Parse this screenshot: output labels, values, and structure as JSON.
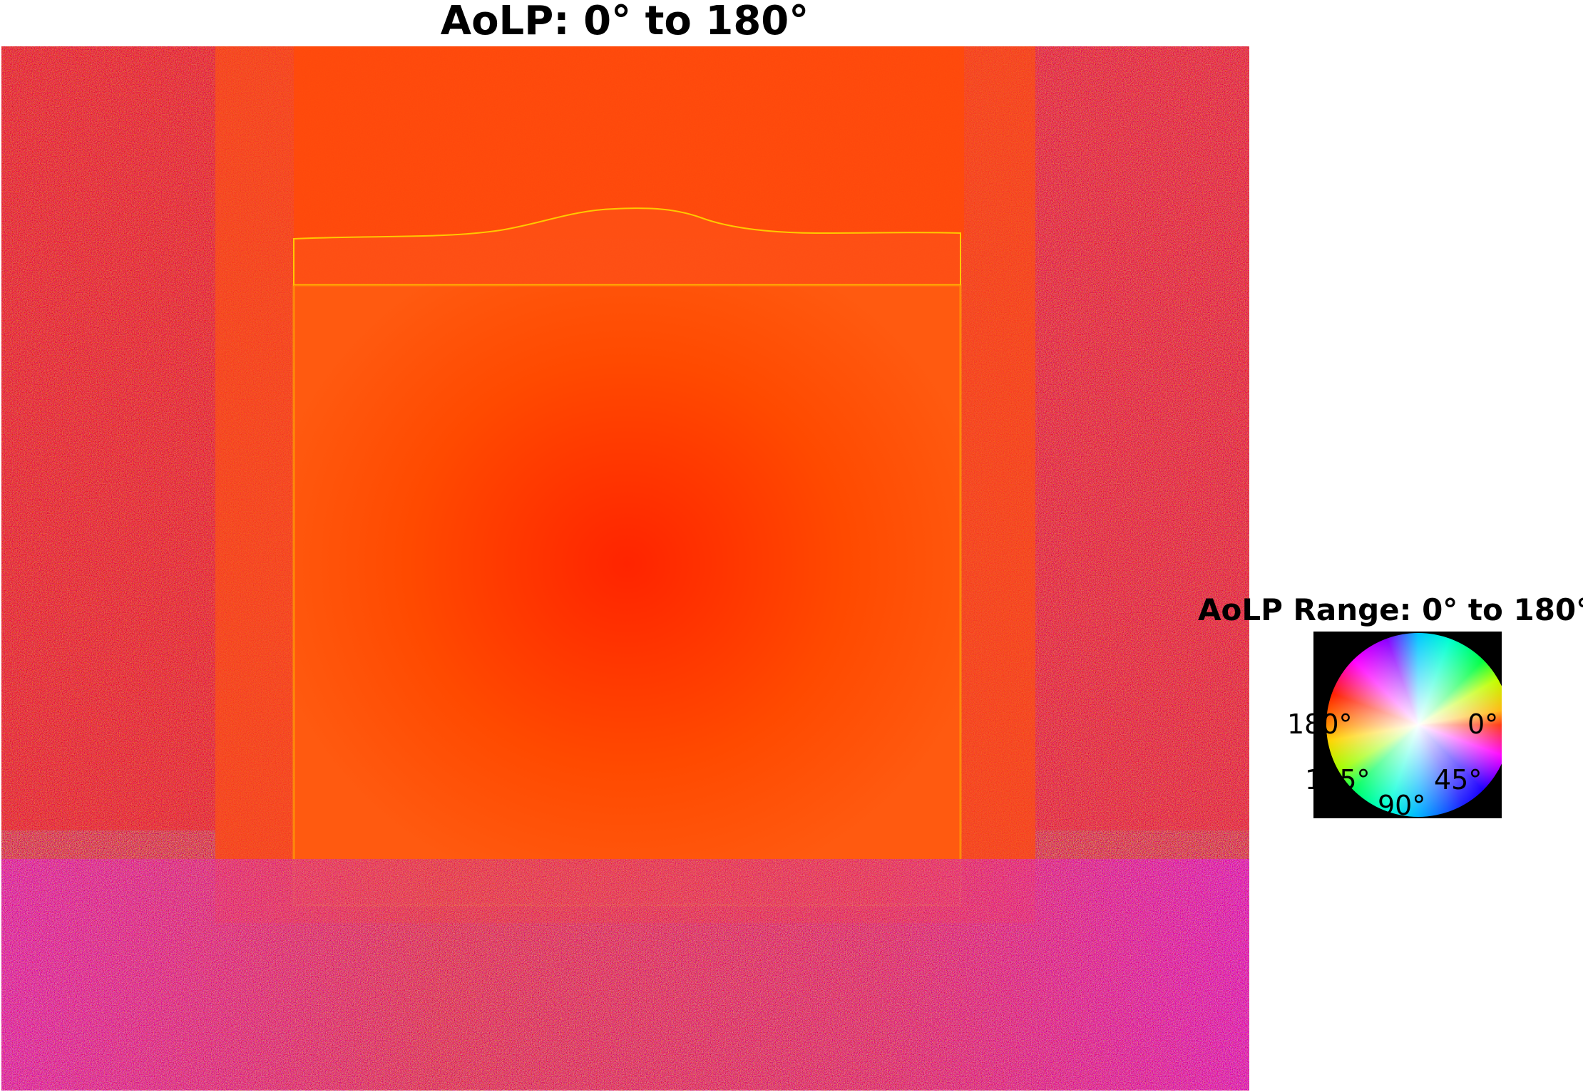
{
  "figure": {
    "title": "AoLP: 0° to 180°"
  },
  "legend": {
    "title": "AoLP Range: 0° to 180°",
    "ticks": {
      "t0": "0°",
      "t45": "45°",
      "t90": "90°",
      "t135": "135°",
      "t180": "180°"
    }
  },
  "colors": {
    "dominant": "#ff3c00",
    "noise_mix": "#ff00ff",
    "highlight": "#ffe600"
  }
}
